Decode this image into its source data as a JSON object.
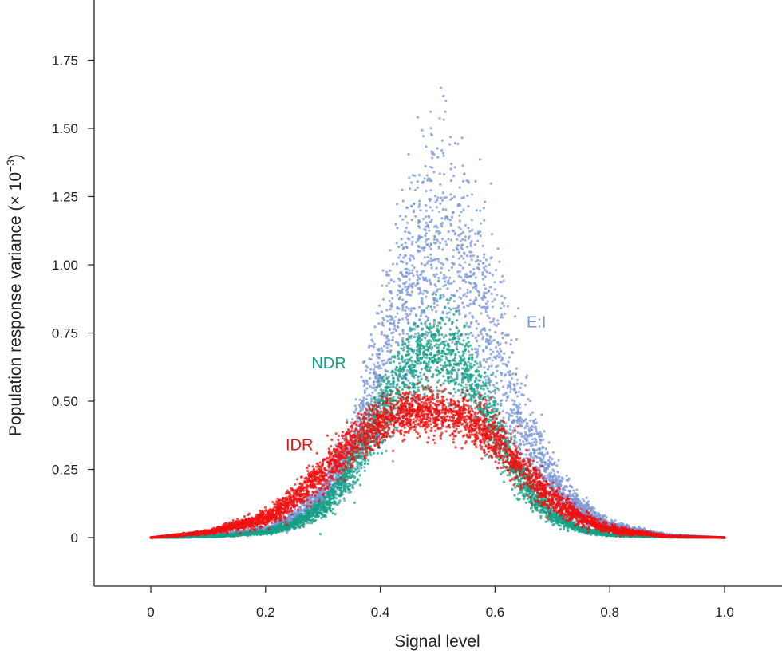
{
  "chart_data": {
    "type": "scatter",
    "title": "",
    "xlabel": "Signal level",
    "ylabel": "Population response variance (× 10",
    "ylabel_exponent": "−3",
    "ylabel_close": ")",
    "xlim": [
      -0.1,
      1.0
    ],
    "ylim": [
      -0.15,
      1.85
    ],
    "x_ticks": [
      {
        "value": 0,
        "label": "0"
      },
      {
        "value": 0.2,
        "label": "0.2"
      },
      {
        "value": 0.4,
        "label": "0.4"
      },
      {
        "value": 0.6,
        "label": "0.6"
      },
      {
        "value": 0.8,
        "label": "0.8"
      },
      {
        "value": 1.0,
        "label": "1.0"
      }
    ],
    "y_ticks": [
      {
        "value": 0,
        "label": "0"
      },
      {
        "value": 0.25,
        "label": "0.25"
      },
      {
        "value": 0.5,
        "label": "0.50"
      },
      {
        "value": 0.75,
        "label": "0.75"
      },
      {
        "value": 1.0,
        "label": "1.00"
      },
      {
        "value": 1.25,
        "label": "1.25"
      },
      {
        "value": 1.5,
        "label": "1.50"
      },
      {
        "value": 1.75,
        "label": "1.75"
      }
    ],
    "grid": false,
    "legend": "inline labels",
    "series": [
      {
        "name": "E:I",
        "color": "#7a96d8",
        "x": [
          0.0,
          0.1,
          0.2,
          0.25,
          0.3,
          0.35,
          0.4,
          0.45,
          0.5,
          0.55,
          0.6,
          0.65,
          0.7,
          0.75,
          0.8,
          0.9,
          1.0
        ],
        "y_center": [
          0.0,
          0.005,
          0.03,
          0.07,
          0.15,
          0.32,
          0.6,
          0.95,
          1.1,
          0.95,
          0.7,
          0.4,
          0.2,
          0.1,
          0.04,
          0.008,
          0.0
        ],
        "y_spread": [
          0.0,
          0.003,
          0.01,
          0.03,
          0.06,
          0.12,
          0.25,
          0.4,
          0.45,
          0.4,
          0.3,
          0.18,
          0.09,
          0.05,
          0.02,
          0.004,
          0.0
        ],
        "y_max": 1.79
      },
      {
        "name": "NDR",
        "color": "#16a085",
        "x": [
          0.0,
          0.1,
          0.2,
          0.25,
          0.3,
          0.35,
          0.4,
          0.45,
          0.5,
          0.55,
          0.6,
          0.65,
          0.7,
          0.75,
          0.8,
          0.9,
          1.0
        ],
        "y_center": [
          0.0,
          0.003,
          0.02,
          0.05,
          0.11,
          0.25,
          0.45,
          0.62,
          0.7,
          0.62,
          0.4,
          0.2,
          0.08,
          0.03,
          0.01,
          0.002,
          0.0
        ],
        "y_spread": [
          0.0,
          0.002,
          0.008,
          0.02,
          0.04,
          0.08,
          0.12,
          0.15,
          0.16,
          0.15,
          0.12,
          0.06,
          0.03,
          0.01,
          0.005,
          0.001,
          0.0
        ],
        "y_max": 0.93
      },
      {
        "name": "IDR",
        "color": "#ee1111",
        "x": [
          0.0,
          0.1,
          0.2,
          0.25,
          0.3,
          0.35,
          0.4,
          0.45,
          0.5,
          0.55,
          0.6,
          0.65,
          0.7,
          0.75,
          0.8,
          0.9,
          1.0
        ],
        "y_center": [
          0.0,
          0.02,
          0.07,
          0.14,
          0.24,
          0.34,
          0.42,
          0.46,
          0.46,
          0.43,
          0.36,
          0.25,
          0.14,
          0.07,
          0.03,
          0.005,
          0.0
        ],
        "y_spread": [
          0.0,
          0.008,
          0.03,
          0.05,
          0.07,
          0.08,
          0.08,
          0.08,
          0.08,
          0.08,
          0.08,
          0.07,
          0.05,
          0.03,
          0.015,
          0.003,
          0.0
        ],
        "y_max": 0.62
      }
    ],
    "annotations": [
      {
        "text": "E:I",
        "x": 0.655,
        "y": 0.77,
        "color": "#7a96d8"
      },
      {
        "text": "NDR",
        "x": 0.28,
        "y": 0.62,
        "color": "#16a085"
      },
      {
        "text": "IDR",
        "x": 0.235,
        "y": 0.32,
        "color": "#ee1111"
      }
    ]
  }
}
